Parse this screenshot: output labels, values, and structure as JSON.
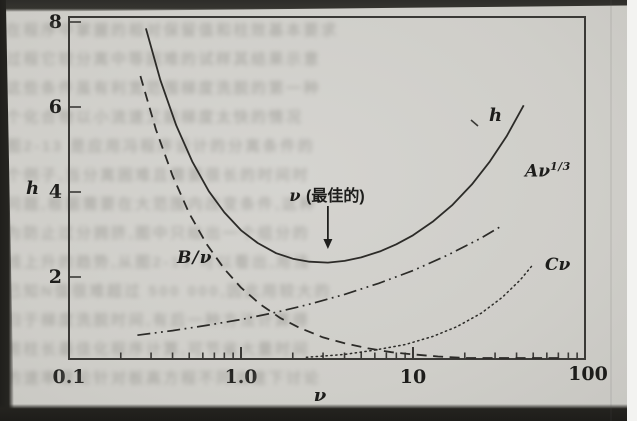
{
  "chart_data": {
    "type": "line",
    "title": "",
    "xlabel": "ν",
    "ylabel": "h",
    "x_scale": "log",
    "xlim": [
      0.1,
      100
    ],
    "ylim": [
      0,
      8
    ],
    "grid": false,
    "legend_position": "inline-curve-labels",
    "xticks": [
      0.1,
      1.0,
      10,
      100
    ],
    "xtick_labels": [
      "0.1",
      "1.0",
      "10",
      "100"
    ],
    "yticks": [
      2,
      4,
      6,
      8
    ],
    "ytick_labels": [
      "2",
      "4",
      "6",
      "8"
    ],
    "annotation": {
      "text": "ν (最佳的)",
      "arrow": "down",
      "arrow_points_to_x": 3.2,
      "arrow_points_to_curve": "h"
    },
    "series": [
      {
        "id": "h",
        "name": "h",
        "style": "solid",
        "points": [
          [
            0.28,
            7.85
          ],
          [
            0.34,
            6.63
          ],
          [
            0.42,
            5.57
          ],
          [
            0.52,
            4.72
          ],
          [
            0.65,
            4.02
          ],
          [
            0.8,
            3.52
          ],
          [
            1,
            3.1
          ],
          [
            1.25,
            2.8
          ],
          [
            1.6,
            2.56
          ],
          [
            2,
            2.43
          ],
          [
            2.5,
            2.36
          ],
          [
            3.2,
            2.34
          ],
          [
            4,
            2.38
          ],
          [
            5,
            2.46
          ],
          [
            6.5,
            2.61
          ],
          [
            8,
            2.77
          ],
          [
            10,
            2.98
          ],
          [
            13,
            3.3
          ],
          [
            17,
            3.7
          ],
          [
            22,
            4.18
          ],
          [
            28,
            4.72
          ],
          [
            35,
            5.31
          ],
          [
            44,
            6.04
          ]
        ]
      },
      {
        "id": "b-over-nu",
        "name": "B/ν",
        "style": "dashed",
        "points": [
          [
            0.26,
            6.73
          ],
          [
            0.32,
            5.47
          ],
          [
            0.4,
            4.38
          ],
          [
            0.5,
            3.5
          ],
          [
            0.63,
            2.78
          ],
          [
            0.8,
            2.19
          ],
          [
            1,
            1.75
          ],
          [
            1.3,
            1.35
          ],
          [
            1.7,
            1.03
          ],
          [
            2.2,
            0.8
          ],
          [
            3,
            0.58
          ],
          [
            4,
            0.44
          ],
          [
            5.5,
            0.32
          ],
          [
            7.5,
            0.23
          ],
          [
            10,
            0.18
          ],
          [
            14,
            0.13
          ],
          [
            20,
            0.09
          ],
          [
            28,
            0.06
          ],
          [
            40,
            0.04
          ],
          [
            55,
            0.03
          ],
          [
            72,
            0.02
          ]
        ]
      },
      {
        "id": "a-nu-13",
        "name": "Aν^(1/3)",
        "style": "dashdotdot",
        "points": [
          [
            0.25,
            0.63
          ],
          [
            0.4,
            0.74
          ],
          [
            0.63,
            0.86
          ],
          [
            1,
            1
          ],
          [
            1.6,
            1.17
          ],
          [
            2.5,
            1.36
          ],
          [
            4,
            1.59
          ],
          [
            6.3,
            1.85
          ],
          [
            10,
            2.15
          ],
          [
            16,
            2.52
          ],
          [
            25,
            2.92
          ],
          [
            33,
            3.21
          ]
        ]
      },
      {
        "id": "c-nu",
        "name": "Cν",
        "style": "dotted",
        "points": [
          [
            2.4,
            0.11
          ],
          [
            4,
            0.18
          ],
          [
            6,
            0.28
          ],
          [
            9,
            0.41
          ],
          [
            13,
            0.6
          ],
          [
            18,
            0.83
          ],
          [
            25,
            1.15
          ],
          [
            33,
            1.52
          ],
          [
            42,
            1.93
          ],
          [
            50,
            2.3
          ]
        ]
      }
    ]
  },
  "labels": {
    "y_axis": "h",
    "x_axis": "ν",
    "curve_h": "h",
    "curve_a_base": "Aν",
    "curve_a_sup": "1/3",
    "curve_b": "B/ν",
    "curve_c": "Cν",
    "annotation_symbol": "ν",
    "annotation_text": "(最佳的)"
  },
  "colors": {
    "page_background": "#d0cfca",
    "ink": "#2c2b28",
    "photo_edge_dark": "#24231f",
    "photo_edge_light": "#f3f3f1"
  },
  "bleedthrough_lines": [
    "在程序中掌握的相对保留值和柱效基本要求",
    "过程它较分离中等困难的试样其结果示意",
    "这些条件虽有利宽范围梯度洗脱的第一种",
    "个化合物以小流速又能梯度太快的情况",
    "图2-13 是应用冯程序设计的分离条件的",
    "个例子,当分离困难且需要很长的时间时",
    "问题,根据需要在大范围内改变条件,这种",
    "为防止过分拥挤,图中只绘出一个组分的",
    "线上升的趋势,从图2-13 可以看出,用浅",
    "已知N值很难超过 500 000,因此用较大的",
    "归于梯度洗脱时间,有后一种方法计算得",
    "用柱长最佳化程序计算,可节省大量时间",
    "的速率理论针对板高方程不同流速下讨论"
  ]
}
